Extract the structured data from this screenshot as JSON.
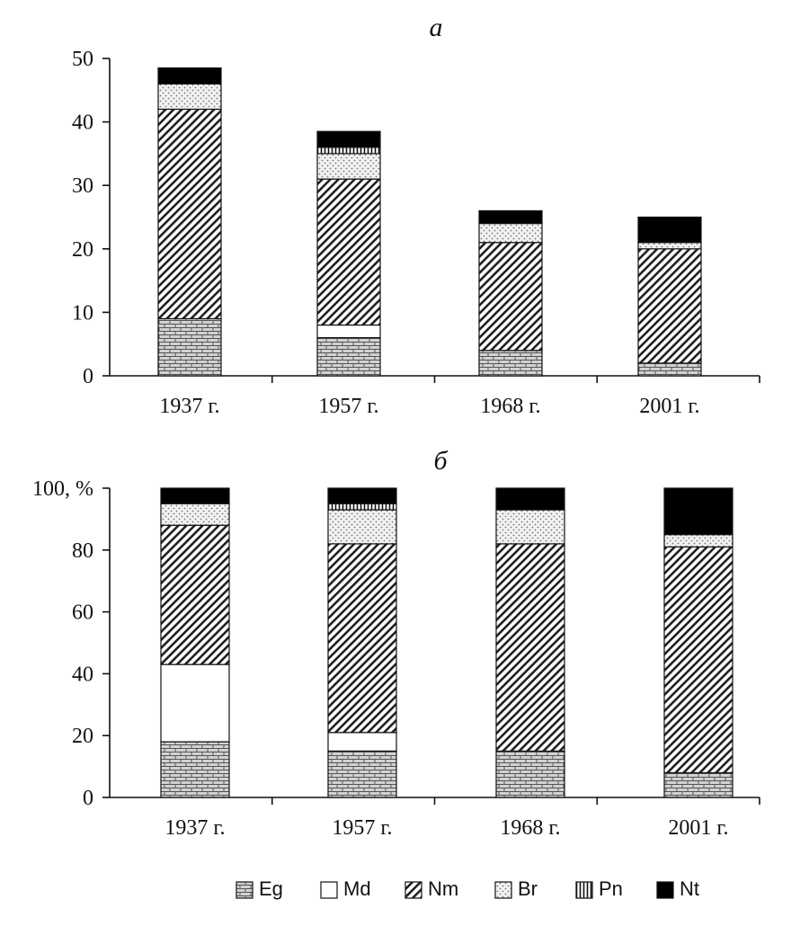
{
  "chart_data": [
    {
      "type": "bar",
      "stacked": true,
      "title": "а",
      "categories": [
        "1937 г.",
        "1957 г.",
        "1968 г.",
        "2001 г."
      ],
      "ylim": [
        0,
        50
      ],
      "yticks": [
        "0",
        "10",
        "20",
        "30",
        "40",
        "50"
      ],
      "grid": false,
      "series": [
        {
          "name": "Eg",
          "values": [
            9,
            6,
            4,
            2
          ]
        },
        {
          "name": "Md",
          "values": [
            0,
            2,
            0,
            0
          ]
        },
        {
          "name": "Nm",
          "values": [
            33,
            23,
            17,
            18
          ]
        },
        {
          "name": "Br",
          "values": [
            4,
            4,
            3,
            1
          ]
        },
        {
          "name": "Pn",
          "values": [
            0,
            1,
            0,
            0
          ]
        },
        {
          "name": "Nt",
          "values": [
            2.5,
            2.5,
            2,
            4
          ]
        }
      ]
    },
    {
      "type": "bar",
      "stacked": true,
      "title": "б",
      "categories": [
        "1937 г.",
        "1957 г.",
        "1968 г.",
        "2001 г."
      ],
      "ylim": [
        0,
        100
      ],
      "yticks": [
        "0",
        "20",
        "40",
        "60",
        "80",
        "100, %"
      ],
      "grid": false,
      "series": [
        {
          "name": "Eg",
          "values": [
            18,
            15,
            15,
            8
          ]
        },
        {
          "name": "Md",
          "values": [
            25,
            6,
            0,
            0
          ]
        },
        {
          "name": "Nm",
          "values": [
            45,
            61,
            67,
            73
          ]
        },
        {
          "name": "Br",
          "values": [
            7,
            11,
            11,
            4
          ]
        },
        {
          "name": "Pn",
          "values": [
            0,
            2,
            0,
            0
          ]
        },
        {
          "name": "Nt",
          "values": [
            5,
            5,
            7,
            15
          ]
        }
      ]
    }
  ],
  "legend": {
    "placement": "bottom",
    "items": [
      {
        "label": "Eg",
        "pattern": "brick"
      },
      {
        "label": "Md",
        "pattern": "blank"
      },
      {
        "label": "Nm",
        "pattern": "diagonal"
      },
      {
        "label": "Br",
        "pattern": "dots"
      },
      {
        "label": "Pn",
        "pattern": "vertical"
      },
      {
        "label": "Nt",
        "pattern": "solid"
      }
    ]
  }
}
